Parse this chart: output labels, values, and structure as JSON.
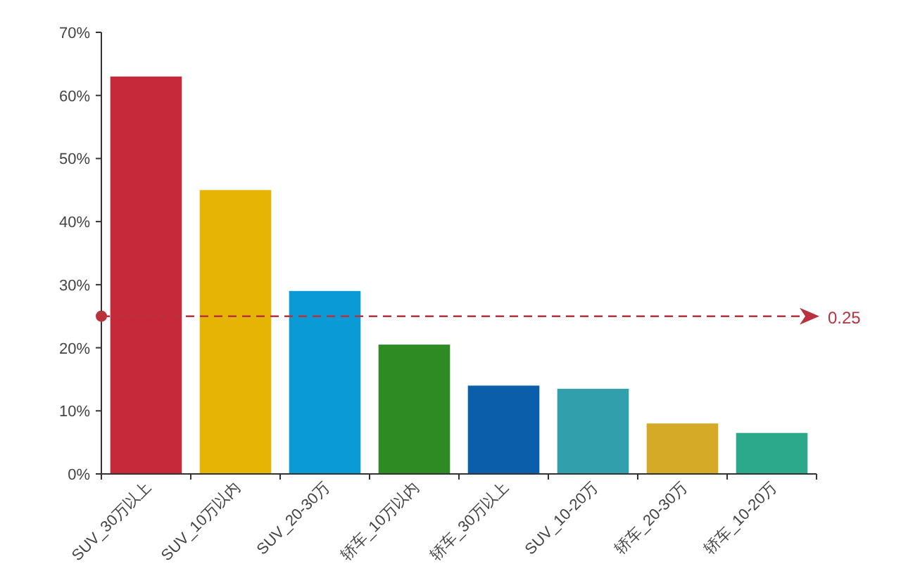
{
  "chart_data": {
    "type": "bar",
    "categories": [
      "SUV_30万以上",
      "SUV_10万以内",
      "SUV_20-30万",
      "轿车_10万以内",
      "轿车_30万以上",
      "SUV_10-20万",
      "轿车_20-30万",
      "轿车_10-20万"
    ],
    "values": [
      0.63,
      0.45,
      0.29,
      0.205,
      0.14,
      0.135,
      0.08,
      0.065
    ],
    "colors": [
      "#c62a3a",
      "#e6b404",
      "#0a9ad6",
      "#2e8a22",
      "#0b5faa",
      "#31a0ac",
      "#d4aa26",
      "#2ca88a"
    ],
    "ylim": [
      0,
      0.7
    ],
    "yticks": [
      {
        "value": 0,
        "label": "0%"
      },
      {
        "value": 0.1,
        "label": "10%"
      },
      {
        "value": 0.2,
        "label": "20%"
      },
      {
        "value": 0.3,
        "label": "30%"
      },
      {
        "value": 0.4,
        "label": "40%"
      },
      {
        "value": 0.5,
        "label": "50%"
      },
      {
        "value": 0.6,
        "label": "60%"
      },
      {
        "value": 0.7,
        "label": "70%"
      }
    ],
    "ref_lines": [
      {
        "axis": "y",
        "value": 0.25,
        "label": "0.25",
        "color": "#b8323e",
        "line_style": "dashed"
      }
    ],
    "grid": false
  }
}
